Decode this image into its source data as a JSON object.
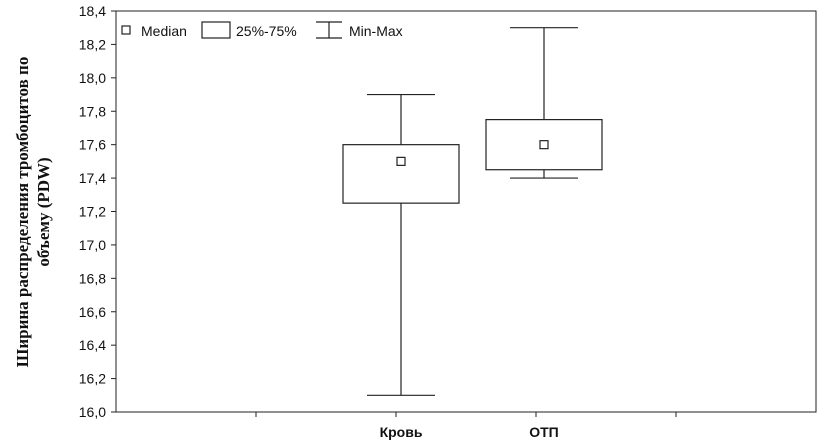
{
  "chart_data": {
    "type": "boxplot",
    "ylabel_lines": [
      "Ширина распределения тромбоцитов по",
      "объему (PDW)"
    ],
    "xlabel": "",
    "ylim": [
      16.0,
      18.4
    ],
    "y_ticks": [
      "16,0",
      "16,2",
      "16,4",
      "16,6",
      "16,8",
      "17,0",
      "17,2",
      "17,4",
      "17,6",
      "17,8",
      "18,0",
      "18,2",
      "18,4"
    ],
    "categories": [
      "Кровь",
      "ОТП"
    ],
    "legend": {
      "placement": "top-left",
      "items": [
        {
          "symbol": "median",
          "label": "Median"
        },
        {
          "symbol": "box",
          "label": "25%-75%"
        },
        {
          "symbol": "whisker",
          "label": "Min-Max"
        }
      ]
    },
    "series": [
      {
        "category": "Кровь",
        "min": 16.1,
        "q1": 17.25,
        "median": 17.5,
        "q3": 17.6,
        "max": 17.9
      },
      {
        "category": "ОТП",
        "min": 17.4,
        "q1": 17.45,
        "median": 17.6,
        "q3": 17.75,
        "max": 18.3
      }
    ],
    "grid": false
  }
}
